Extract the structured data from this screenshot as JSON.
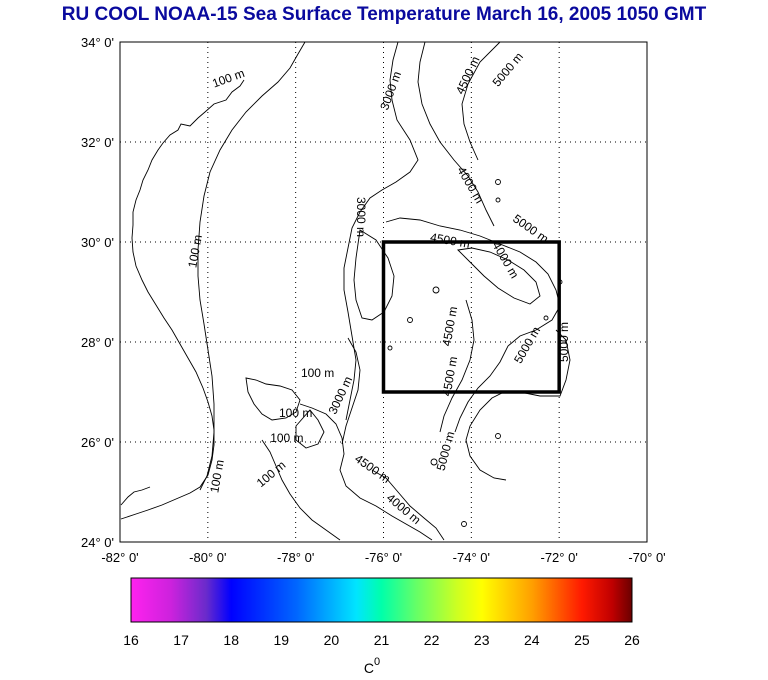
{
  "title": "RU COOL  NOAA-15 Sea Surface Temperature March 16, 2005 1050 GMT",
  "colors": {
    "title": "#0a0a9e",
    "land_line": "#000000",
    "grid": "#000000",
    "box": "#000000"
  },
  "axes": {
    "x_ticks": [
      "-82° 0'",
      "-80° 0'",
      "-78° 0'",
      "-76° 0'",
      "-74° 0'",
      "-72° 0'",
      "-70° 0'"
    ],
    "x_values": [
      -82,
      -80,
      -78,
      -76,
      -74,
      -72,
      -70
    ],
    "y_ticks": [
      "24° 0'",
      "26° 0'",
      "28° 0'",
      "30° 0'",
      "32° 0'",
      "34° 0'"
    ],
    "y_values": [
      24,
      26,
      28,
      30,
      32,
      34
    ],
    "lon_range": [
      -82,
      -70
    ],
    "lat_range": [
      24,
      34
    ],
    "grid": true
  },
  "region_box": {
    "lon": [
      -76,
      -72
    ],
    "lat": [
      27,
      30
    ]
  },
  "contour_labels": [
    {
      "text": "100 m",
      "lon": -79.5,
      "lat": 33.2,
      "rot": -20
    },
    {
      "text": "3000 m",
      "lon": -75.75,
      "lat": 33.0,
      "rot": -70
    },
    {
      "text": "4500 m",
      "lon": -74.0,
      "lat": 33.3,
      "rot": -65
    },
    {
      "text": "5000 m",
      "lon": -73.1,
      "lat": 33.4,
      "rot": -50
    },
    {
      "text": "4000 m",
      "lon": -74.1,
      "lat": 31.1,
      "rot": 60
    },
    {
      "text": "5000 m",
      "lon": -72.7,
      "lat": 30.2,
      "rot": 35
    },
    {
      "text": "3000 m",
      "lon": -76.6,
      "lat": 30.5,
      "rot": 90
    },
    {
      "text": "100 m",
      "lon": -80.2,
      "lat": 29.8,
      "rot": -80
    },
    {
      "text": "4500 m",
      "lon": -74.5,
      "lat": 29.95,
      "rot": 10
    },
    {
      "text": "4000 m",
      "lon": -73.3,
      "lat": 29.6,
      "rot": 60
    },
    {
      "text": "4500 m",
      "lon": -74.4,
      "lat": 28.3,
      "rot": -80
    },
    {
      "text": "5000 m",
      "lon": -72.65,
      "lat": 27.9,
      "rot": -60
    },
    {
      "text": "5000 m",
      "lon": -71.8,
      "lat": 28.0,
      "rot": -90
    },
    {
      "text": "4500 m",
      "lon": -74.4,
      "lat": 27.3,
      "rot": -80
    },
    {
      "text": "100 m",
      "lon": -77.5,
      "lat": 27.3,
      "rot": 0
    },
    {
      "text": "3000 m",
      "lon": -76.9,
      "lat": 26.9,
      "rot": -65
    },
    {
      "text": "100 m",
      "lon": -78.0,
      "lat": 26.5,
      "rot": 0
    },
    {
      "text": "100 m",
      "lon": -78.2,
      "lat": 26.0,
      "rot": 0
    },
    {
      "text": "100 m",
      "lon": -79.7,
      "lat": 25.3,
      "rot": -80
    },
    {
      "text": "100 m",
      "lon": -78.5,
      "lat": 25.3,
      "rot": -40
    },
    {
      "text": "5000 m",
      "lon": -74.5,
      "lat": 25.8,
      "rot": -75
    },
    {
      "text": "4500 m",
      "lon": -76.3,
      "lat": 25.4,
      "rot": 35
    },
    {
      "text": "4000 m",
      "lon": -75.6,
      "lat": 24.6,
      "rot": 40
    }
  ],
  "colorbar": {
    "ticks": [
      "16",
      "17",
      "18",
      "19",
      "20",
      "21",
      "22",
      "23",
      "24",
      "25",
      "26"
    ],
    "min": 16,
    "max": 26,
    "unit": "C",
    "unit_sup": "0"
  }
}
